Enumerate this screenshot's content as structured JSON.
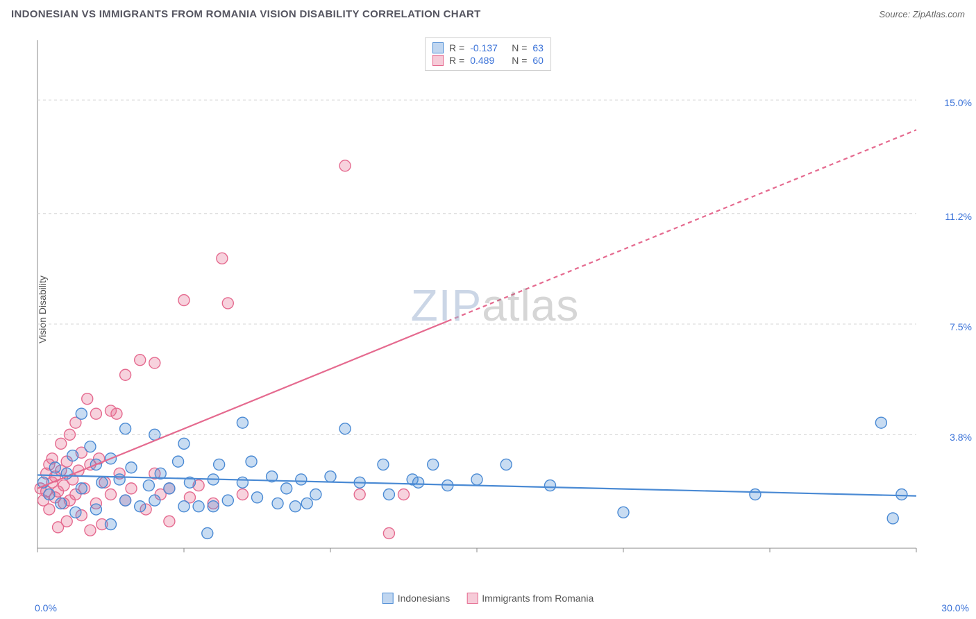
{
  "header": {
    "title": "INDONESIAN VS IMMIGRANTS FROM ROMANIA VISION DISABILITY CORRELATION CHART",
    "source_label": "Source: ",
    "source_value": "ZipAtlas.com"
  },
  "watermark": {
    "part1": "ZIP",
    "part2": "atlas"
  },
  "chart": {
    "type": "scatter",
    "y_axis_label": "Vision Disability",
    "background_color": "#ffffff",
    "plot_border_color": "#888888",
    "grid_color": "#d5d5d5",
    "grid_dash": "4,4",
    "xlim": [
      0,
      30
    ],
    "ylim": [
      0,
      17
    ],
    "x_ticks": [
      0,
      5,
      10,
      15,
      20,
      25,
      30
    ],
    "x_tick_labels_shown": {
      "0": "0.0%",
      "30": "30.0%"
    },
    "y_gridlines": [
      3.8,
      7.5,
      11.2,
      15.0
    ],
    "y_tick_labels": {
      "3.8": "3.8%",
      "7.5": "7.5%",
      "11.2": "11.2%",
      "15.0": "15.0%"
    },
    "tick_label_color": "#3a72d8",
    "tick_label_fontsize": 14,
    "marker_radius": 8,
    "marker_stroke_width": 1.4,
    "marker_fill_opacity": 0.3,
    "trendline_width": 2.2,
    "series": [
      {
        "name": "Indonesians",
        "color": "#4a8ad4",
        "points": [
          [
            0.2,
            2.2
          ],
          [
            0.4,
            1.8
          ],
          [
            0.6,
            2.7
          ],
          [
            0.8,
            1.5
          ],
          [
            1.0,
            2.5
          ],
          [
            1.2,
            3.1
          ],
          [
            1.3,
            1.2
          ],
          [
            1.5,
            4.5
          ],
          [
            1.5,
            2.0
          ],
          [
            1.8,
            3.4
          ],
          [
            2.0,
            2.8
          ],
          [
            2.0,
            1.3
          ],
          [
            2.2,
            2.2
          ],
          [
            2.5,
            3.0
          ],
          [
            2.5,
            0.8
          ],
          [
            2.8,
            2.3
          ],
          [
            3.0,
            1.6
          ],
          [
            3.0,
            4.0
          ],
          [
            3.2,
            2.7
          ],
          [
            3.5,
            1.4
          ],
          [
            3.8,
            2.1
          ],
          [
            4.0,
            3.8
          ],
          [
            4.0,
            1.6
          ],
          [
            4.2,
            2.5
          ],
          [
            4.5,
            2.0
          ],
          [
            4.8,
            2.9
          ],
          [
            5.0,
            3.5
          ],
          [
            5.0,
            1.4
          ],
          [
            5.2,
            2.2
          ],
          [
            5.5,
            1.4
          ],
          [
            5.8,
            0.5
          ],
          [
            6.0,
            2.3
          ],
          [
            6.0,
            1.4
          ],
          [
            6.2,
            2.8
          ],
          [
            6.5,
            1.6
          ],
          [
            7.0,
            4.2
          ],
          [
            7.0,
            2.2
          ],
          [
            7.3,
            2.9
          ],
          [
            7.5,
            1.7
          ],
          [
            8.0,
            2.4
          ],
          [
            8.2,
            1.5
          ],
          [
            8.5,
            2.0
          ],
          [
            8.8,
            1.4
          ],
          [
            9.0,
            2.3
          ],
          [
            9.2,
            1.5
          ],
          [
            9.5,
            1.8
          ],
          [
            10.0,
            2.4
          ],
          [
            10.5,
            4.0
          ],
          [
            11.0,
            2.2
          ],
          [
            11.8,
            2.8
          ],
          [
            12.0,
            1.8
          ],
          [
            12.8,
            2.3
          ],
          [
            13.0,
            2.2
          ],
          [
            13.5,
            2.8
          ],
          [
            14.0,
            2.1
          ],
          [
            15.0,
            2.3
          ],
          [
            16.0,
            2.8
          ],
          [
            17.5,
            2.1
          ],
          [
            20.0,
            1.2
          ],
          [
            24.5,
            1.8
          ],
          [
            28.8,
            4.2
          ],
          [
            29.2,
            1.0
          ],
          [
            29.5,
            1.8
          ]
        ],
        "trend": {
          "y_at_x0": 2.45,
          "y_at_x30": 1.75,
          "dash": null,
          "dash_after_x": null
        }
      },
      {
        "name": "Immigrants from Romania",
        "color": "#e56a8f",
        "points": [
          [
            0.1,
            2.0
          ],
          [
            0.2,
            1.6
          ],
          [
            0.3,
            2.5
          ],
          [
            0.3,
            1.9
          ],
          [
            0.4,
            2.8
          ],
          [
            0.4,
            1.3
          ],
          [
            0.5,
            2.2
          ],
          [
            0.5,
            3.0
          ],
          [
            0.6,
            1.7
          ],
          [
            0.6,
            2.4
          ],
          [
            0.7,
            0.7
          ],
          [
            0.7,
            1.9
          ],
          [
            0.8,
            2.6
          ],
          [
            0.8,
            3.5
          ],
          [
            0.9,
            1.5
          ],
          [
            0.9,
            2.1
          ],
          [
            1.0,
            2.9
          ],
          [
            1.0,
            0.9
          ],
          [
            1.1,
            3.8
          ],
          [
            1.1,
            1.6
          ],
          [
            1.2,
            2.3
          ],
          [
            1.3,
            4.2
          ],
          [
            1.3,
            1.8
          ],
          [
            1.4,
            2.6
          ],
          [
            1.5,
            3.2
          ],
          [
            1.5,
            1.1
          ],
          [
            1.6,
            2.0
          ],
          [
            1.7,
            5.0
          ],
          [
            1.8,
            0.6
          ],
          [
            1.8,
            2.8
          ],
          [
            2.0,
            4.5
          ],
          [
            2.0,
            1.5
          ],
          [
            2.1,
            3.0
          ],
          [
            2.2,
            0.8
          ],
          [
            2.3,
            2.2
          ],
          [
            2.5,
            4.6
          ],
          [
            2.5,
            1.8
          ],
          [
            2.7,
            4.5
          ],
          [
            2.8,
            2.5
          ],
          [
            3.0,
            1.6
          ],
          [
            3.0,
            5.8
          ],
          [
            3.2,
            2.0
          ],
          [
            3.5,
            6.3
          ],
          [
            3.7,
            1.3
          ],
          [
            4.0,
            6.2
          ],
          [
            4.0,
            2.5
          ],
          [
            4.2,
            1.8
          ],
          [
            4.5,
            2.0
          ],
          [
            4.5,
            0.9
          ],
          [
            5.0,
            8.3
          ],
          [
            5.2,
            1.7
          ],
          [
            5.5,
            2.1
          ],
          [
            6.0,
            1.5
          ],
          [
            6.3,
            9.7
          ],
          [
            6.5,
            8.2
          ],
          [
            7.0,
            1.8
          ],
          [
            10.5,
            12.8
          ],
          [
            11.0,
            1.8
          ],
          [
            12.0,
            0.5
          ],
          [
            12.5,
            1.8
          ]
        ],
        "trend": {
          "y_at_x0": 2.0,
          "y_at_x30": 14.0,
          "dash": "6,5",
          "dash_after_x": 14
        }
      }
    ],
    "stats_legend": {
      "border_color": "#d0d0d0",
      "rows": [
        {
          "swatch_fill": "rgba(74,138,212,0.35)",
          "swatch_border": "#4a8ad4",
          "R_label": "R =",
          "R": "-0.137",
          "N_label": "N =",
          "N": "63"
        },
        {
          "swatch_fill": "rgba(229,106,143,0.35)",
          "swatch_border": "#e56a8f",
          "R_label": "R =",
          "R": "0.489",
          "N_label": "N =",
          "N": "60"
        }
      ],
      "label_color": "#555555",
      "value_color": "#3a72d8"
    },
    "bottom_legend": {
      "items": [
        {
          "swatch_fill": "rgba(74,138,212,0.35)",
          "swatch_border": "#4a8ad4",
          "label": "Indonesians"
        },
        {
          "swatch_fill": "rgba(229,106,143,0.35)",
          "swatch_border": "#e56a8f",
          "label": "Immigrants from Romania"
        }
      ]
    }
  }
}
